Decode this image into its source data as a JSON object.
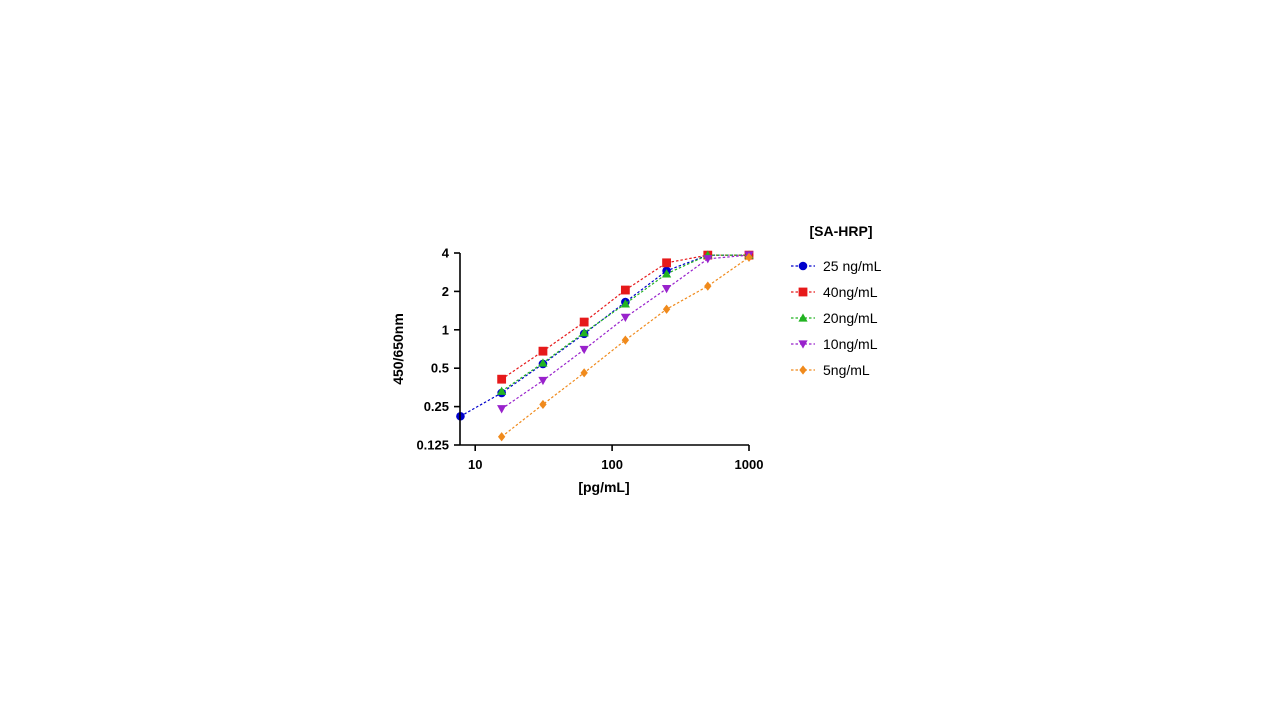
{
  "chart_data": {
    "type": "line",
    "xlabel": "[pg/mL]",
    "ylabel": "450/650nm",
    "x_scale": "log10",
    "y_scale": "log2",
    "xlim": [
      5,
      1000
    ],
    "ylim": [
      0.125,
      4
    ],
    "x_ticks": [
      "10",
      "100",
      "1000"
    ],
    "y_ticks": [
      "0.125",
      "0.25",
      "0.5",
      "1",
      "2",
      "4"
    ],
    "legend_title": "[SA-HRP]",
    "legend_position": "right",
    "series": [
      {
        "name": "25 ng/mL",
        "color": "#0000cc",
        "marker": "circle",
        "x": [
          7.8,
          15.6,
          31.25,
          62.5,
          125,
          250,
          500,
          1000
        ],
        "y": [
          0.21,
          0.32,
          0.54,
          0.93,
          1.65,
          2.9,
          3.85,
          3.85
        ]
      },
      {
        "name": "40ng/mL",
        "color": "#e6191a",
        "marker": "square",
        "x": [
          15.6,
          31.25,
          62.5,
          125,
          250,
          500,
          1000
        ],
        "y": [
          0.41,
          0.68,
          1.15,
          2.05,
          3.35,
          3.85,
          3.85
        ]
      },
      {
        "name": "20ng/mL",
        "color": "#22b322",
        "marker": "triangle-up",
        "x": [
          15.6,
          31.25,
          62.5,
          125,
          250,
          500,
          1000
        ],
        "y": [
          0.33,
          0.55,
          0.95,
          1.6,
          2.75,
          3.85,
          3.85
        ]
      },
      {
        "name": "10ng/mL",
        "color": "#9922cc",
        "marker": "triangle-down",
        "x": [
          15.6,
          31.25,
          62.5,
          125,
          250,
          500,
          1000
        ],
        "y": [
          0.24,
          0.4,
          0.7,
          1.25,
          2.1,
          3.6,
          3.85
        ]
      },
      {
        "name": "5ng/mL",
        "color": "#f08a1c",
        "marker": "diamond",
        "x": [
          15.6,
          31.25,
          62.5,
          125,
          250,
          500,
          1000
        ],
        "y": [
          0.145,
          0.26,
          0.46,
          0.83,
          1.45,
          2.2,
          3.7
        ]
      }
    ]
  }
}
